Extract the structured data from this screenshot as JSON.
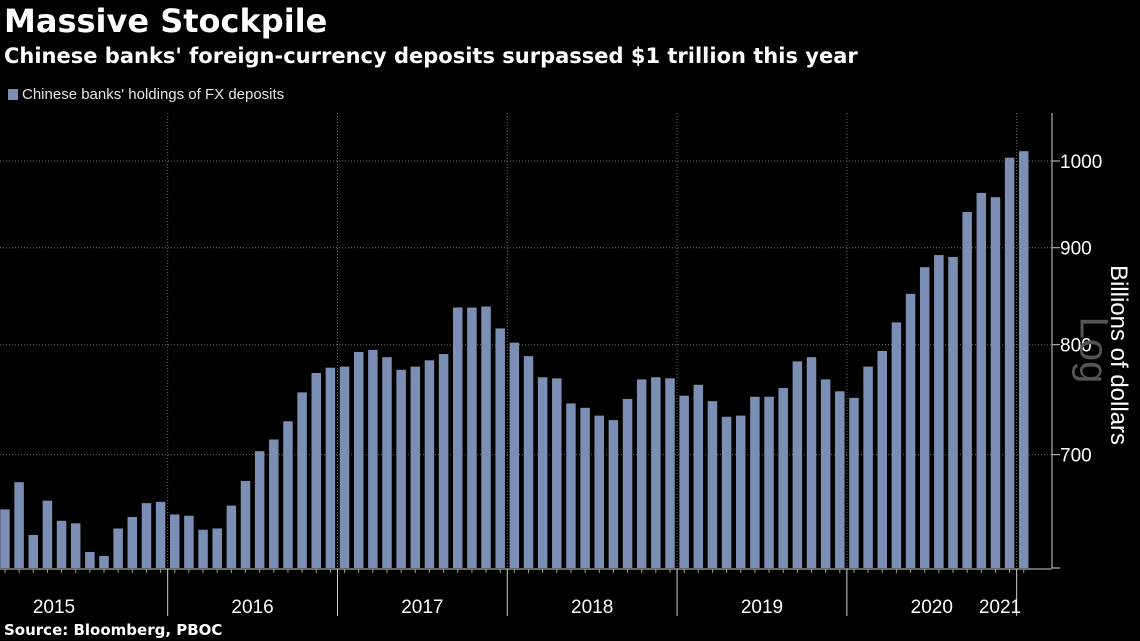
{
  "title": "Massive Stockpile",
  "subtitle": "Chinese banks' foreign-currency deposits surpassed $1 trillion this year",
  "source": "Source: Bloomberg, PBOC",
  "colors": {
    "bar": "#7a8fb3",
    "grid": "#6e6e6e",
    "background": "#000000",
    "text": "#ffffff"
  },
  "chart_data": {
    "type": "bar",
    "legend": [
      "Chinese banks' holdings of FX deposits"
    ],
    "legend_position": "top-left",
    "ylabel": "Billions of dollars",
    "scale_note": "Log",
    "y_scale": "log",
    "y_axis_side": "right",
    "ylim": [
      610,
      1060
    ],
    "yticks": [
      700,
      800,
      900,
      1000
    ],
    "grid": "vertical dotted at year boundaries, horizontal at y ticks",
    "year_labels": [
      "2015",
      "2016",
      "2017",
      "2018",
      "2019",
      "2020",
      "2021"
    ],
    "series": [
      {
        "name": "Chinese banks' holdings of FX deposits",
        "values": [
          {
            "x": "2015-01",
            "y": 655
          },
          {
            "x": "2015-02",
            "y": 677
          },
          {
            "x": "2015-03",
            "y": 635
          },
          {
            "x": "2015-04",
            "y": 662
          },
          {
            "x": "2015-05",
            "y": 646
          },
          {
            "x": "2015-06",
            "y": 644
          },
          {
            "x": "2015-07",
            "y": 622
          },
          {
            "x": "2015-08",
            "y": 619
          },
          {
            "x": "2015-09",
            "y": 640
          },
          {
            "x": "2015-10",
            "y": 649
          },
          {
            "x": "2015-11",
            "y": 660
          },
          {
            "x": "2015-12",
            "y": 661
          },
          {
            "x": "2016-01",
            "y": 651
          },
          {
            "x": "2016-02",
            "y": 650
          },
          {
            "x": "2016-03",
            "y": 639
          },
          {
            "x": "2016-04",
            "y": 640
          },
          {
            "x": "2016-05",
            "y": 658
          },
          {
            "x": "2016-06",
            "y": 678
          },
          {
            "x": "2016-07",
            "y": 703
          },
          {
            "x": "2016-08",
            "y": 713
          },
          {
            "x": "2016-09",
            "y": 729
          },
          {
            "x": "2016-10",
            "y": 755
          },
          {
            "x": "2016-11",
            "y": 773
          },
          {
            "x": "2016-12",
            "y": 778
          },
          {
            "x": "2017-01",
            "y": 779
          },
          {
            "x": "2017-02",
            "y": 793
          },
          {
            "x": "2017-03",
            "y": 795
          },
          {
            "x": "2017-04",
            "y": 788
          },
          {
            "x": "2017-05",
            "y": 776
          },
          {
            "x": "2017-06",
            "y": 779
          },
          {
            "x": "2017-07",
            "y": 785
          },
          {
            "x": "2017-08",
            "y": 791
          },
          {
            "x": "2017-09",
            "y": 837
          },
          {
            "x": "2017-10",
            "y": 837
          },
          {
            "x": "2017-11",
            "y": 838
          },
          {
            "x": "2017-12",
            "y": 816
          },
          {
            "x": "2018-01",
            "y": 802
          },
          {
            "x": "2018-02",
            "y": 789
          },
          {
            "x": "2018-03",
            "y": 769
          },
          {
            "x": "2018-04",
            "y": 768
          },
          {
            "x": "2018-05",
            "y": 745
          },
          {
            "x": "2018-06",
            "y": 741
          },
          {
            "x": "2018-07",
            "y": 734
          },
          {
            "x": "2018-08",
            "y": 730
          },
          {
            "x": "2018-09",
            "y": 749
          },
          {
            "x": "2018-10",
            "y": 767
          },
          {
            "x": "2018-11",
            "y": 769
          },
          {
            "x": "2018-12",
            "y": 768
          },
          {
            "x": "2019-01",
            "y": 752
          },
          {
            "x": "2019-02",
            "y": 762
          },
          {
            "x": "2019-03",
            "y": 747
          },
          {
            "x": "2019-04",
            "y": 733
          },
          {
            "x": "2019-05",
            "y": 734
          },
          {
            "x": "2019-06",
            "y": 751
          },
          {
            "x": "2019-07",
            "y": 751
          },
          {
            "x": "2019-08",
            "y": 759
          },
          {
            "x": "2019-09",
            "y": 784
          },
          {
            "x": "2019-10",
            "y": 788
          },
          {
            "x": "2019-11",
            "y": 767
          },
          {
            "x": "2019-12",
            "y": 756
          },
          {
            "x": "2020-01",
            "y": 750
          },
          {
            "x": "2020-02",
            "y": 779
          },
          {
            "x": "2020-03",
            "y": 794
          },
          {
            "x": "2020-04",
            "y": 822
          },
          {
            "x": "2020-05",
            "y": 851
          },
          {
            "x": "2020-06",
            "y": 879
          },
          {
            "x": "2020-07",
            "y": 892
          },
          {
            "x": "2020-08",
            "y": 890
          },
          {
            "x": "2020-09",
            "y": 940
          },
          {
            "x": "2020-10",
            "y": 962
          },
          {
            "x": "2020-11",
            "y": 957
          },
          {
            "x": "2020-12",
            "y": 1004
          },
          {
            "x": "2021-01",
            "y": 1012
          }
        ]
      }
    ]
  }
}
